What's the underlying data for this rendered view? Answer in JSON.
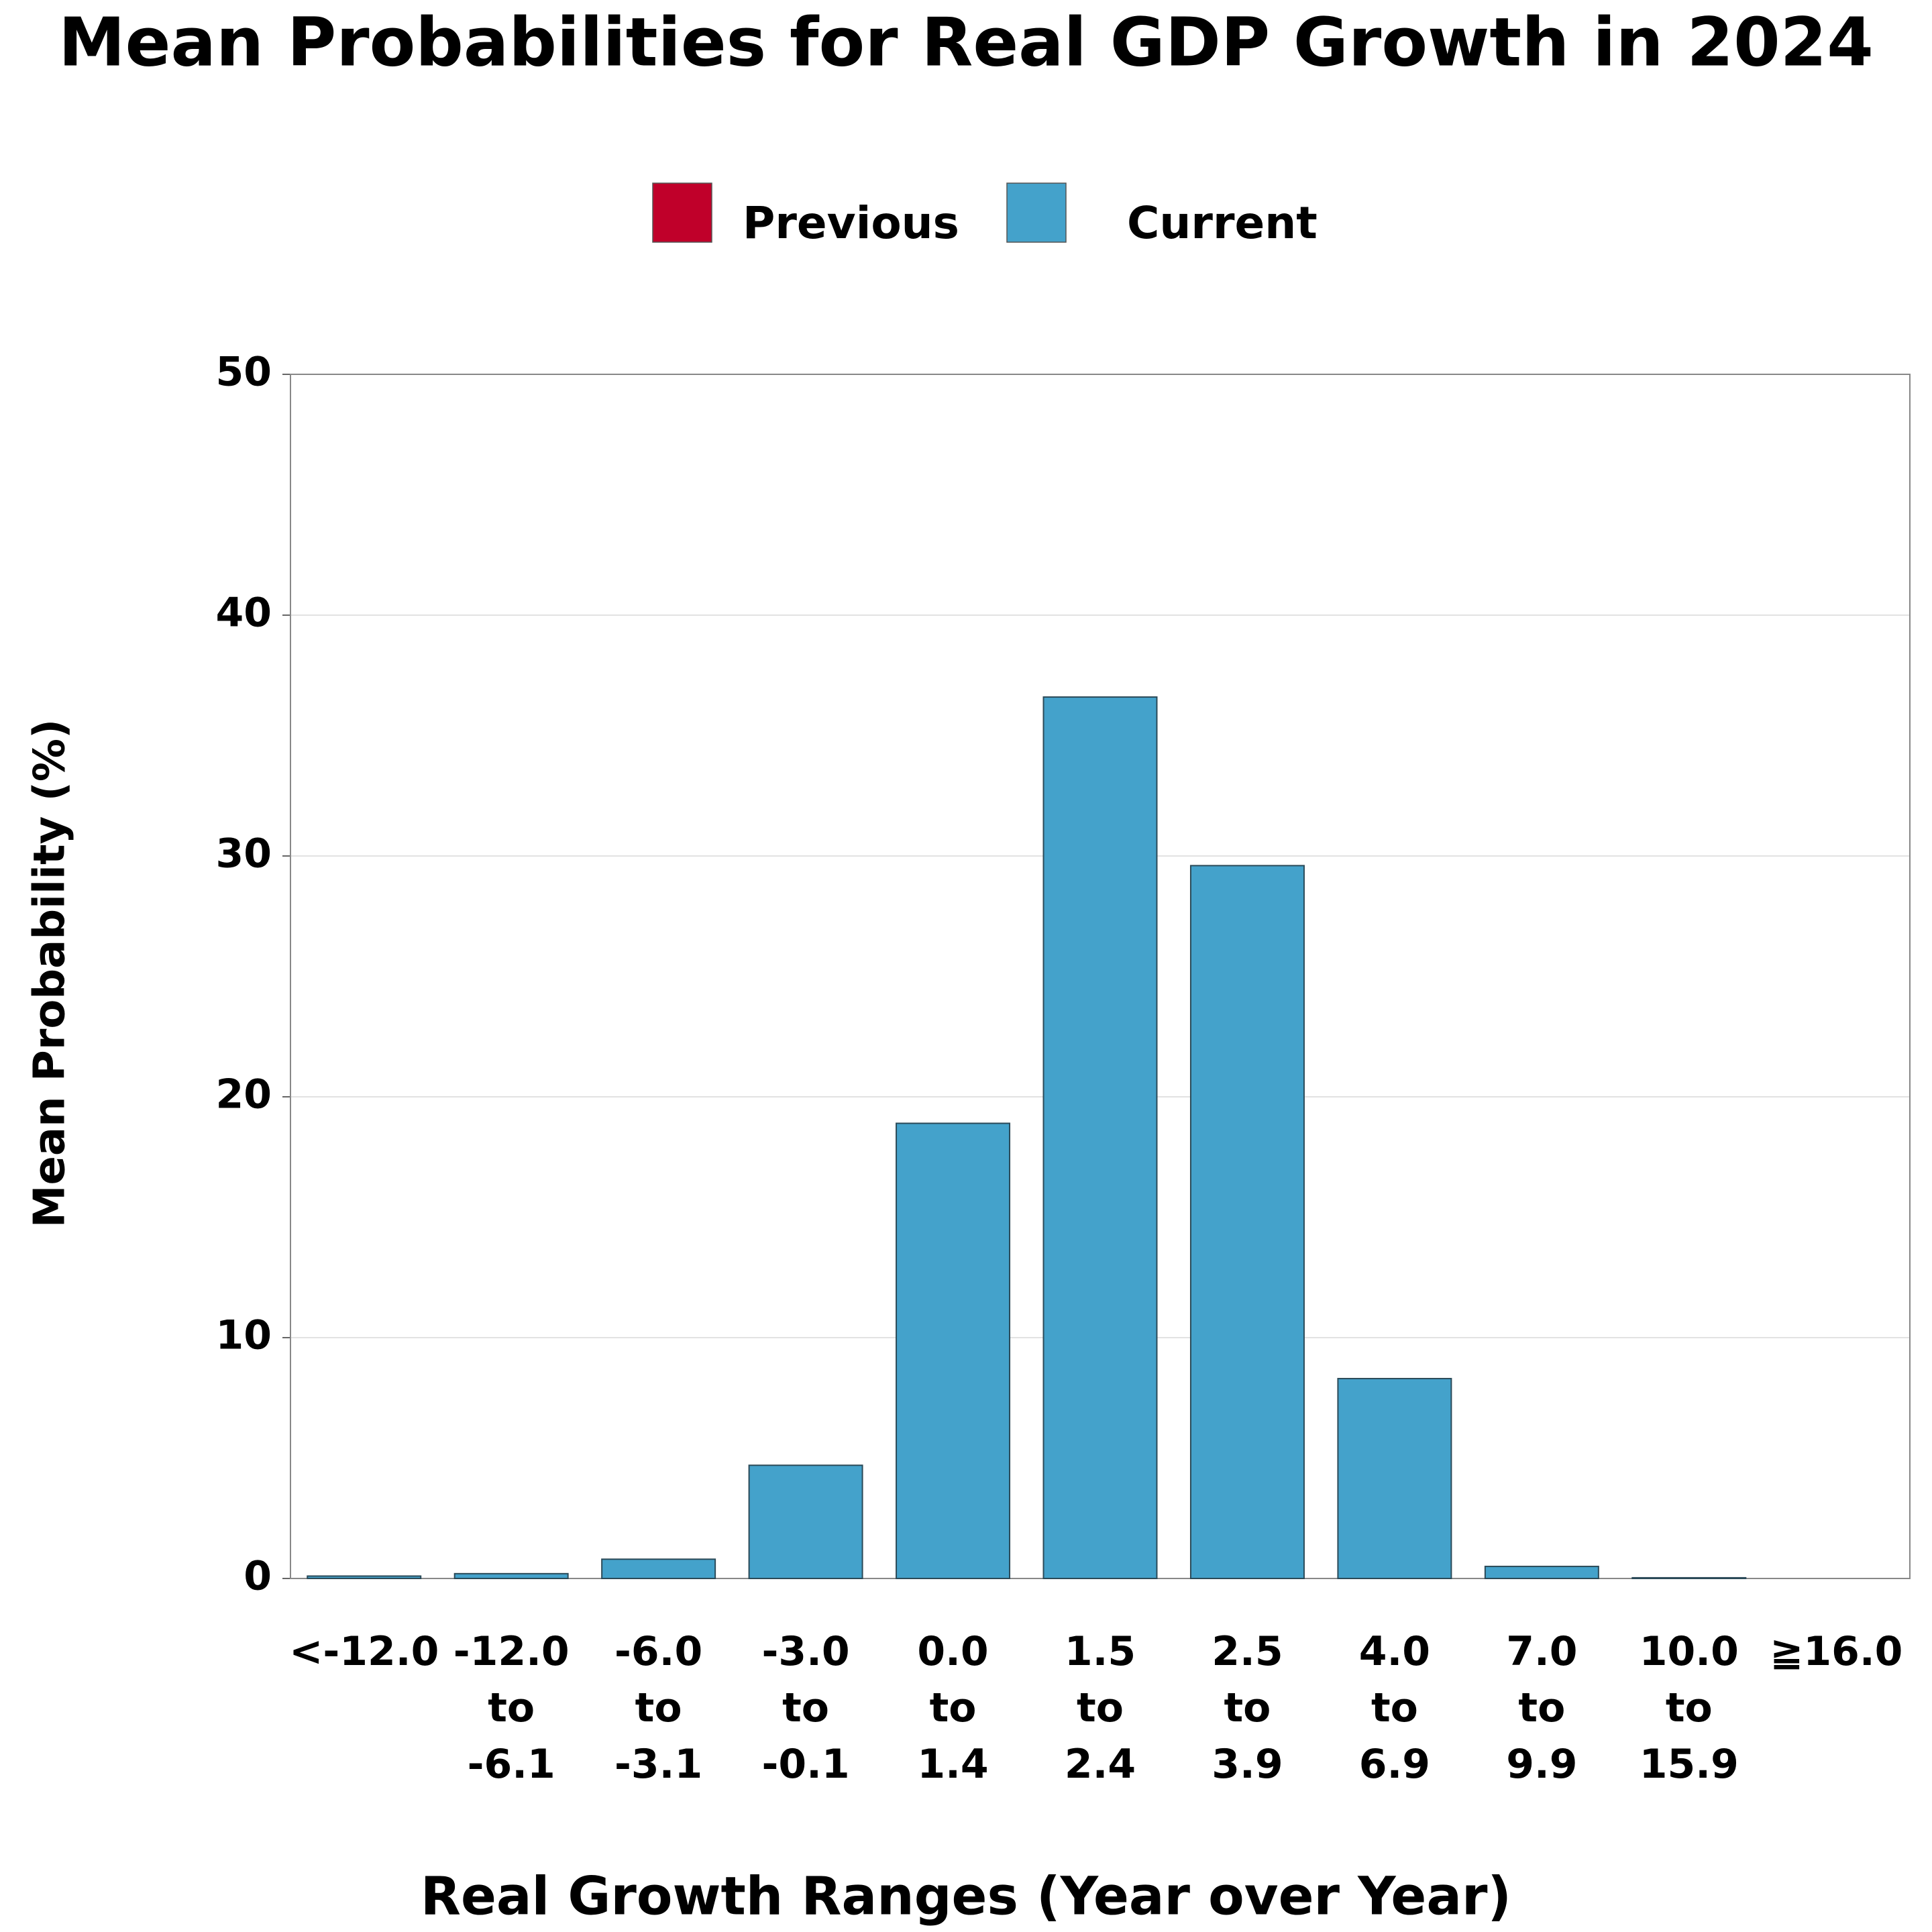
{
  "chart_data": {
    "type": "bar",
    "title": "Mean Probabilities for Real GDP Growth in 2024",
    "xlabel": "Real Growth Ranges (Year over Year)",
    "ylabel": "Mean Probability (%)",
    "categories": [
      [
        "<-12.0"
      ],
      [
        "-12.0",
        "to",
        "-6.1"
      ],
      [
        "-6.0",
        "to",
        "-3.1"
      ],
      [
        "-3.0",
        "to",
        "-0.1"
      ],
      [
        "0.0",
        "to",
        "1.4"
      ],
      [
        "1.5",
        "to",
        "2.4"
      ],
      [
        "2.5",
        "to",
        "3.9"
      ],
      [
        "4.0",
        "to",
        "6.9"
      ],
      [
        "7.0",
        "to",
        "9.9"
      ],
      [
        "10.0",
        "to",
        "15.9"
      ],
      [
        "≧16.0"
      ]
    ],
    "series": [
      {
        "name": "Previous",
        "color": "#c0002a",
        "values": [
          null,
          null,
          null,
          null,
          null,
          null,
          null,
          null,
          null,
          null,
          null
        ]
      },
      {
        "name": "Current",
        "color": "#44a2cb",
        "values": [
          0.1,
          0.2,
          0.8,
          4.7,
          18.9,
          36.6,
          29.6,
          8.3,
          0.5,
          0.03,
          0
        ]
      }
    ],
    "ylim": [
      0,
      50
    ],
    "yticks": [
      0,
      10,
      20,
      30,
      40,
      50
    ],
    "grid": true,
    "legend": "top"
  }
}
